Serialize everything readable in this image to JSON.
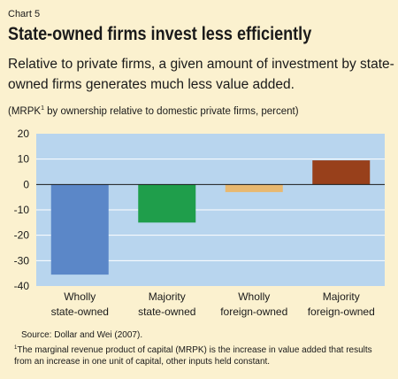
{
  "chart_label": "Chart 5",
  "title": "State-owned firms invest less efficiently",
  "subtitle": "Relative to private firms, a given amount of investment by state-owned firms generates much less value added.",
  "ylabel": {
    "prefix": "(MRPK",
    "footnote_mark": "1",
    "suffix": " by ownership relative to domestic private firms, percent)"
  },
  "chart_data": {
    "type": "bar",
    "categories": [
      [
        "Wholly",
        "state-owned"
      ],
      [
        "Majority",
        "state-owned"
      ],
      [
        "Wholly",
        "foreign-owned"
      ],
      [
        "Majority",
        "foreign-owned"
      ]
    ],
    "values": [
      -35.5,
      -15,
      -3,
      9.5
    ],
    "colors": [
      "#5b87c8",
      "#1f9e4b",
      "#e8b870",
      "#98401b"
    ],
    "ylim": [
      -40,
      20
    ],
    "yticks": [
      20,
      10,
      0,
      -10,
      -20,
      -30,
      -40
    ],
    "plot_background": "#b8d5ee",
    "grid": true
  },
  "source": "Source:  Dollar and Wei (2007).",
  "note": {
    "mark": "1",
    "text": "The marginal revenue product of capital (MRPK) is the increase in value added that results from an increase in one unit of capital, other inputs held constant."
  }
}
